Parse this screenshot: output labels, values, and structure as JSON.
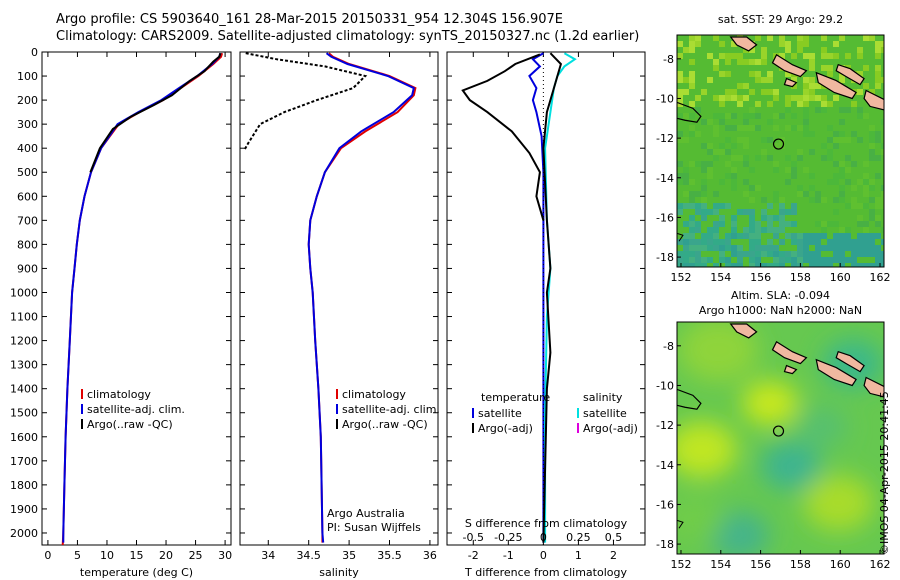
{
  "header": {
    "line1": "Argo profile: CS 5903640_161 28-Mar-2015 20150331_954 12.304S 156.907E",
    "line2": "Climatology: CARS2009. Satellite-adjusted climatology: synTS_20150327.nc (1.2d earlier)"
  },
  "footer_credit": "©IMOS 04-Apr-2015 20:41:45",
  "colors": {
    "climatology": "#e00000",
    "satellite": "#0000dd",
    "argo": "#000000",
    "cyan": "#00e0e0",
    "magenta": "#dd00dd"
  },
  "chart_data": [
    {
      "type": "line",
      "name": "temperature-profile",
      "xlabel": "temperature (deg C)",
      "xlim": [
        -1,
        31
      ],
      "ylim": [
        2050,
        0
      ],
      "xticks": [
        0,
        5,
        10,
        15,
        20,
        25,
        30
      ],
      "yticks": [
        0,
        100,
        200,
        300,
        400,
        500,
        600,
        700,
        800,
        900,
        1000,
        1100,
        1200,
        1300,
        1400,
        1500,
        1600,
        1700,
        1800,
        1900,
        2000
      ],
      "legend": [
        "climatology",
        "satellite-adj. clim.",
        "Argo(..raw -QC)"
      ],
      "series": [
        {
          "name": "climatology",
          "color": "#e00000",
          "points": [
            [
              29.5,
              5
            ],
            [
              29.3,
              20
            ],
            [
              28,
              50
            ],
            [
              25.5,
              100
            ],
            [
              22.5,
              150
            ],
            [
              19.5,
              200
            ],
            [
              15.5,
              250
            ],
            [
              12,
              300
            ],
            [
              9,
              400
            ],
            [
              7.3,
              500
            ],
            [
              6.2,
              600
            ],
            [
              5.4,
              700
            ],
            [
              4.9,
              800
            ],
            [
              4.5,
              900
            ],
            [
              4.1,
              1000
            ],
            [
              3.7,
              1200
            ],
            [
              3.3,
              1400
            ],
            [
              3,
              1600
            ],
            [
              2.8,
              1800
            ],
            [
              2.6,
              2000
            ],
            [
              2.5,
              2050
            ]
          ]
        },
        {
          "name": "satellite-adj. clim.",
          "color": "#0000dd",
          "points": [
            [
              29.2,
              5
            ],
            [
              29,
              20
            ],
            [
              27.8,
              50
            ],
            [
              25.3,
              100
            ],
            [
              22.2,
              150
            ],
            [
              19.2,
              200
            ],
            [
              15.3,
              250
            ],
            [
              11.8,
              300
            ],
            [
              9,
              400
            ],
            [
              7.3,
              500
            ],
            [
              6.2,
              600
            ],
            [
              5.4,
              700
            ],
            [
              4.9,
              800
            ],
            [
              4.5,
              900
            ],
            [
              4.1,
              1000
            ],
            [
              3.7,
              1200
            ],
            [
              3.3,
              1400
            ],
            [
              3,
              1600
            ],
            [
              2.8,
              1800
            ],
            [
              2.6,
              2000
            ],
            [
              2.6,
              2040
            ]
          ]
        },
        {
          "name": "Argo(..raw -QC)",
          "color": "#000000",
          "points": [
            [
              29.2,
              5
            ],
            [
              29,
              20
            ],
            [
              28,
              40
            ],
            [
              26.5,
              80
            ],
            [
              24,
              120
            ],
            [
              21,
              180
            ],
            [
              18,
              220
            ],
            [
              14,
              270
            ],
            [
              11,
              320
            ],
            [
              8.8,
              400
            ],
            [
              7.2,
              500
            ]
          ]
        }
      ]
    },
    {
      "type": "line",
      "name": "salinity-profile",
      "xlabel": "salinity",
      "xlim": [
        33.65,
        36.1
      ],
      "ylim": [
        2050,
        0
      ],
      "xticks": [
        34,
        34.5,
        35,
        35.5,
        36
      ],
      "legend": [
        "climatology",
        "satellite-adj. clim.",
        "Argo(..raw -QC)"
      ],
      "annotation": [
        "Argo Australia",
        "PI: Susan Wijffels"
      ],
      "series": [
        {
          "name": "climatology",
          "color": "#e00000",
          "points": [
            [
              34.75,
              5
            ],
            [
              34.8,
              20
            ],
            [
              35,
              50
            ],
            [
              35.5,
              100
            ],
            [
              35.82,
              150
            ],
            [
              35.8,
              180
            ],
            [
              35.6,
              250
            ],
            [
              35.2,
              330
            ],
            [
              34.9,
              400
            ],
            [
              34.7,
              500
            ],
            [
              34.6,
              600
            ],
            [
              34.52,
              700
            ],
            [
              34.5,
              800
            ],
            [
              34.52,
              900
            ],
            [
              34.55,
              1000
            ],
            [
              34.58,
              1200
            ],
            [
              34.62,
              1400
            ],
            [
              34.65,
              1600
            ],
            [
              34.66,
              1800
            ],
            [
              34.67,
              2000
            ],
            [
              34.67,
              2040
            ]
          ]
        },
        {
          "name": "satellite-adj. clim.",
          "color": "#0000dd",
          "points": [
            [
              34.72,
              5
            ],
            [
              34.78,
              20
            ],
            [
              34.98,
              50
            ],
            [
              35.48,
              100
            ],
            [
              35.8,
              150
            ],
            [
              35.78,
              180
            ],
            [
              35.55,
              250
            ],
            [
              35.15,
              330
            ],
            [
              34.88,
              400
            ],
            [
              34.7,
              500
            ],
            [
              34.6,
              600
            ],
            [
              34.52,
              700
            ],
            [
              34.5,
              800
            ],
            [
              34.52,
              900
            ],
            [
              34.55,
              1000
            ],
            [
              34.58,
              1200
            ],
            [
              34.62,
              1400
            ],
            [
              34.65,
              1600
            ],
            [
              34.66,
              1800
            ],
            [
              34.67,
              2000
            ],
            [
              34.68,
              2040
            ]
          ]
        },
        {
          "name": "Argo(..raw -QC)",
          "color": "#000000",
          "points": [
            [
              33.72,
              5
            ],
            [
              34.1,
              30
            ],
            [
              34.7,
              60
            ],
            [
              34.95,
              80
            ],
            [
              35.2,
              100
            ],
            [
              35.05,
              150
            ],
            [
              34.6,
              200
            ],
            [
              34.2,
              250
            ],
            [
              33.9,
              300
            ],
            [
              33.75,
              380
            ],
            [
              33.7,
              410
            ]
          ]
        }
      ]
    },
    {
      "type": "line",
      "name": "difference-profile",
      "xlabel": "T difference from climatology",
      "xlabel2": "S difference from climatology",
      "xlim": [
        -2.75,
        2.9
      ],
      "ylim": [
        2050,
        0
      ],
      "xticks": [
        -2,
        -1,
        0,
        1,
        2
      ],
      "sticks": [
        {
          "v": -2,
          "l": "-0.5"
        },
        {
          "v": -1,
          "l": "-0.25"
        },
        {
          "v": 0,
          "l": "0"
        },
        {
          "v": 1,
          "l": "0.25"
        },
        {
          "v": 2,
          "l": "0.5"
        }
      ],
      "legend_left": {
        "title": "temperature",
        "items": [
          "satellite",
          "Argo(-adj)"
        ]
      },
      "legend_right": {
        "title": "salinity",
        "items": [
          "satellite",
          "Argo(-adj)"
        ]
      },
      "series": [
        {
          "name": "T satellite",
          "color": "#0000dd",
          "points": [
            [
              0,
              5
            ],
            [
              -0.3,
              30
            ],
            [
              -0.1,
              60
            ],
            [
              -0.4,
              100
            ],
            [
              -0.2,
              150
            ],
            [
              -0.3,
              200
            ],
            [
              -0.2,
              250
            ],
            [
              -0.05,
              350
            ],
            [
              0,
              500
            ],
            [
              0,
              2040
            ]
          ]
        },
        {
          "name": "T Argo(-adj)",
          "color": "#000000",
          "points": [
            [
              -0.1,
              10
            ],
            [
              -0.8,
              50
            ],
            [
              -1.1,
              80
            ],
            [
              -1.6,
              120
            ],
            [
              -2.3,
              160
            ],
            [
              -2.1,
              200
            ],
            [
              -1.6,
              250
            ],
            [
              -0.9,
              330
            ],
            [
              -0.4,
              420
            ],
            [
              -0.1,
              500
            ],
            [
              -0.2,
              600
            ],
            [
              0,
              700
            ]
          ]
        },
        {
          "name": "S satellite",
          "color": "#00e0e0",
          "points": [
            [
              0.6,
              5
            ],
            [
              0.9,
              30
            ],
            [
              0.6,
              60
            ],
            [
              0.4,
              100
            ],
            [
              0.3,
              150
            ],
            [
              0.2,
              250
            ],
            [
              0.05,
              400
            ],
            [
              0.1,
              700
            ],
            [
              0.2,
              900
            ],
            [
              0.1,
              1100
            ],
            [
              0.05,
              1500
            ],
            [
              0.05,
              2040
            ]
          ]
        },
        {
          "name": "S Argo(-adj)",
          "color": "#000000",
          "points": [
            [
              0.2,
              5
            ],
            [
              0.5,
              50
            ],
            [
              0.3,
              150
            ],
            [
              0.1,
              250
            ],
            [
              0,
              400
            ],
            [
              0.1,
              700
            ],
            [
              0.2,
              900
            ],
            [
              0.1,
              1000
            ],
            [
              0.2,
              1250
            ],
            [
              0.1,
              1400
            ],
            [
              0,
              2040
            ]
          ]
        }
      ]
    },
    {
      "type": "heatmap",
      "name": "sst-map",
      "title": "sat. SST: 29 Argo: 29.2",
      "xlim": [
        151.8,
        162.2
      ],
      "ylim": [
        -18.5,
        -6.8
      ],
      "xticks": [
        152,
        154,
        156,
        158,
        160,
        162
      ],
      "yticks": [
        -8,
        -10,
        -12,
        -14,
        -16,
        -18
      ],
      "marker": [
        156.9,
        -12.3
      ]
    },
    {
      "type": "heatmap",
      "name": "sla-map",
      "title": "Altim. SLA: -0.094",
      "subtitle": "Argo h1000: NaN h2000: NaN",
      "xlim": [
        151.8,
        162.2
      ],
      "ylim": [
        -18.5,
        -6.8
      ],
      "xticks": [
        152,
        154,
        156,
        158,
        160,
        162
      ],
      "yticks": [
        -8,
        -10,
        -12,
        -14,
        -16,
        -18
      ],
      "marker": [
        156.9,
        -12.3
      ]
    }
  ]
}
